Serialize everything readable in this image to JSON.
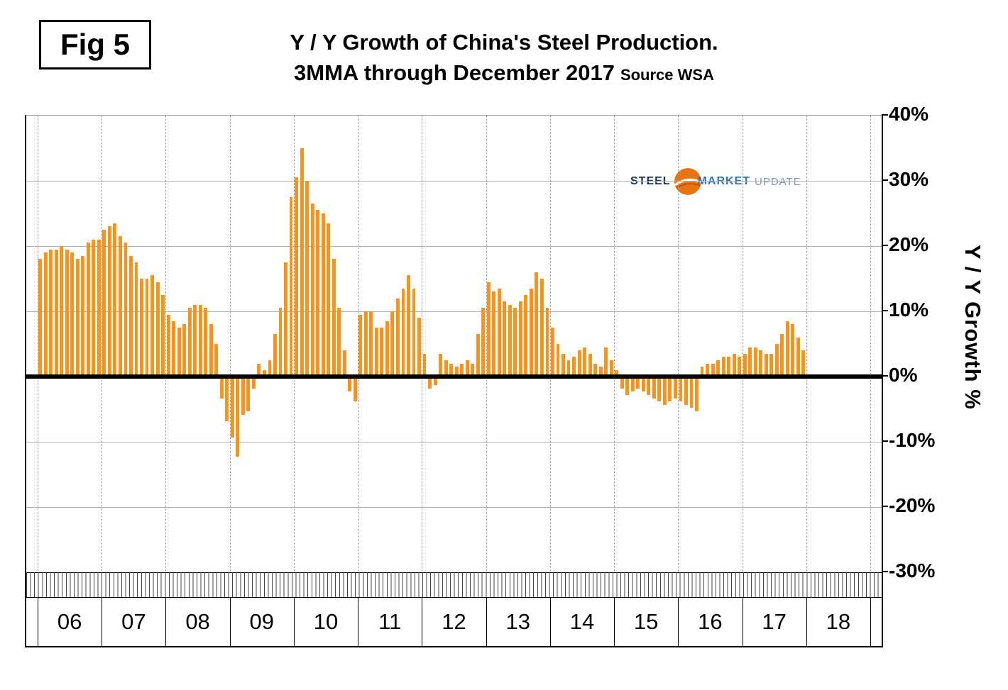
{
  "figure_label": "Fig 5",
  "title": {
    "line1": "Y / Y Growth of China's Steel Production.",
    "line2": "3MMA through December 2017",
    "source": "Source WSA"
  },
  "logo": {
    "steel": "STEEL",
    "market": "MARKET",
    "update": "UPDATE"
  },
  "chart_data": {
    "type": "bar",
    "title": "Y / Y Growth of China's Steel Production. 3MMA through December 2017",
    "ylabel": "Y / Y Growth %",
    "ylim": [
      -30,
      40
    ],
    "yticks": [
      40,
      30,
      20,
      10,
      0,
      -10,
      -20,
      -30
    ],
    "ytick_labels": [
      "40%",
      "30%",
      "20%",
      "10%",
      "0%",
      "-10%",
      "-20%",
      "-30%"
    ],
    "x_year_labels": [
      "06",
      "07",
      "08",
      "09",
      "10",
      "11",
      "12",
      "13",
      "14",
      "15",
      "16",
      "17",
      "18"
    ],
    "bar_color": "#F7941E",
    "grid": "horizontal solid gray lines every 10%, vertical dotted lines at year boundaries, thick black zero line",
    "legend": "none",
    "series": [
      {
        "name": "Y/Y growth % (3MMA)",
        "years": [
          "2006",
          "2007",
          "2008",
          "2009",
          "2010",
          "2011",
          "2012",
          "2013",
          "2014",
          "2015",
          "2016",
          "2017"
        ],
        "values_by_year": {
          "2006": [
            18,
            19,
            19.5,
            19.5,
            20,
            19.5,
            19,
            18,
            18.5,
            20.5,
            21,
            21
          ],
          "2007": [
            22.5,
            23,
            23.5,
            21.5,
            20.5,
            18.5,
            17.5,
            15,
            15,
            15.5,
            14.5,
            12.5
          ],
          "2008": [
            9.5,
            8.5,
            7.5,
            8,
            10.5,
            11,
            11,
            10.5,
            8,
            5,
            -3,
            -6.5
          ],
          "2009": [
            -9,
            -12,
            -5.5,
            -5,
            -1.5,
            2,
            1,
            2.5,
            6.5,
            10.5,
            17.5,
            27.5
          ],
          "2010": [
            30.5,
            35,
            30,
            26.5,
            25.5,
            25,
            23.5,
            18,
            10.5,
            4,
            -2,
            -3.5
          ],
          "2011": [
            9.5,
            10,
            10,
            7.5,
            7.5,
            8.5,
            10,
            12,
            13.5,
            15.5,
            13.5,
            9
          ],
          "2012": [
            3.5,
            -1.5,
            -1,
            3.5,
            2.5,
            2,
            1.5,
            2,
            2.5,
            2,
            6.5,
            10.5
          ],
          "2013": [
            14.5,
            13,
            13.5,
            11.5,
            11,
            10.5,
            11.5,
            12.5,
            13.5,
            16,
            15,
            10.5
          ],
          "2014": [
            7.5,
            5,
            3.5,
            2.5,
            3,
            4,
            4.5,
            3.5,
            2,
            1.5,
            4.5,
            2.5
          ],
          "2015": [
            1,
            -1.5,
            -2.5,
            -2,
            -1.5,
            -2,
            -2.5,
            -3,
            -3.5,
            -4,
            -3.5,
            -3
          ],
          "2016": [
            -3.5,
            -4,
            -4.5,
            -5,
            1.5,
            2,
            2,
            2.5,
            3,
            3,
            3.5,
            3
          ],
          "2017": [
            3.5,
            4.5,
            4.5,
            4,
            3.5,
            3.5,
            5,
            6.5,
            8.5,
            8,
            6,
            4
          ]
        }
      }
    ]
  }
}
